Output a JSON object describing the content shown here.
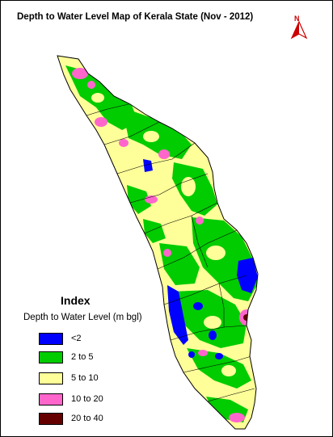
{
  "map": {
    "title": "Depth to Water Level Map of Kerala State (Nov - 2012)",
    "north_label": "N",
    "north_icon": "north-arrow-icon"
  },
  "legend": {
    "title": "Index",
    "subtitle": "Depth to Water Level (m bgl)",
    "items": [
      {
        "label": "<2",
        "color": "#0000ff"
      },
      {
        "label": "2 to 5",
        "color": "#00cc00"
      },
      {
        "label": "5 to 10",
        "color": "#ffff99"
      },
      {
        "label": "10 to 20",
        "color": "#ff66cc"
      },
      {
        "label": "20 to 40",
        "color": "#660000"
      }
    ]
  }
}
